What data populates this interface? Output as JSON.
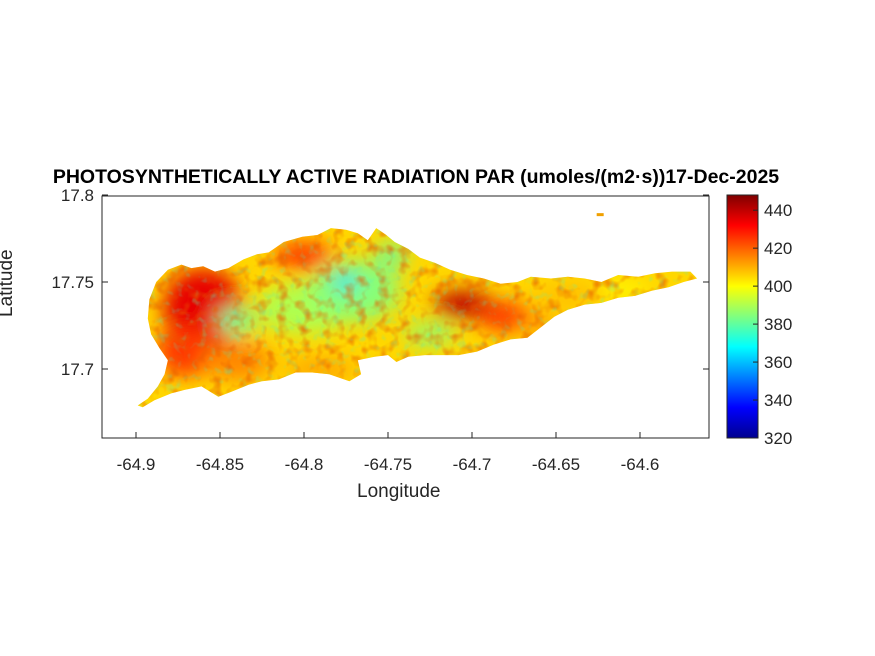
{
  "title": "PHOTOSYNTHETICALLY ACTIVE RADIATION PAR (umoles/(m2·s))17-Dec-2025",
  "xlabel": "Longitude",
  "ylabel": "Latitude",
  "x_ticks": [
    "-64.9",
    "-64.85",
    "-64.8",
    "-64.75",
    "-64.7",
    "-64.65",
    "-64.6"
  ],
  "y_ticks": [
    "17.7",
    "17.75",
    "17.8"
  ],
  "colorbar_ticks": [
    "320",
    "340",
    "360",
    "380",
    "400",
    "420",
    "440"
  ],
  "chart_data": {
    "type": "heatmap",
    "title": "PHOTOSYNTHETICALLY ACTIVE RADIATION PAR (umoles/(m2·s))17-Dec-2025",
    "xlabel": "Longitude",
    "ylabel": "Latitude",
    "xlim": [
      -64.92,
      -64.556
    ],
    "ylim": [
      17.658,
      17.8
    ],
    "colorbar": {
      "colormap": "jet",
      "range": [
        320,
        448
      ],
      "ticks": [
        320,
        340,
        360,
        380,
        400,
        420,
        440
      ]
    },
    "region_outline_lonlat": [
      [
        -64.899,
        17.679
      ],
      [
        -64.893,
        17.683
      ],
      [
        -64.887,
        17.69
      ],
      [
        -64.883,
        17.697
      ],
      [
        -64.881,
        17.705
      ],
      [
        -64.886,
        17.712
      ],
      [
        -64.891,
        17.72
      ],
      [
        -64.893,
        17.729
      ],
      [
        -64.892,
        17.74
      ],
      [
        -64.888,
        17.75
      ],
      [
        -64.881,
        17.757
      ],
      [
        -64.873,
        17.76
      ],
      [
        -64.867,
        17.758
      ],
      [
        -64.86,
        17.759
      ],
      [
        -64.853,
        17.756
      ],
      [
        -64.845,
        17.758
      ],
      [
        -64.836,
        17.763
      ],
      [
        -64.828,
        17.766
      ],
      [
        -64.821,
        17.767
      ],
      [
        -64.812,
        17.773
      ],
      [
        -64.801,
        17.776
      ],
      [
        -64.792,
        17.777
      ],
      [
        -64.784,
        17.781
      ],
      [
        -64.775,
        17.78
      ],
      [
        -64.768,
        17.778
      ],
      [
        -64.762,
        17.774
      ],
      [
        -64.757,
        17.781
      ],
      [
        -64.751,
        17.777
      ],
      [
        -64.746,
        17.773
      ],
      [
        -64.738,
        17.769
      ],
      [
        -64.731,
        17.764
      ],
      [
        -64.722,
        17.761
      ],
      [
        -64.713,
        17.757
      ],
      [
        -64.703,
        17.754
      ],
      [
        -64.693,
        17.752
      ],
      [
        -64.683,
        17.749
      ],
      [
        -64.673,
        17.75
      ],
      [
        -64.665,
        17.753
      ],
      [
        -64.653,
        17.752
      ],
      [
        -64.643,
        17.753
      ],
      [
        -64.633,
        17.752
      ],
      [
        -64.623,
        17.75
      ],
      [
        -64.613,
        17.754
      ],
      [
        -64.601,
        17.753
      ],
      [
        -64.591,
        17.755
      ],
      [
        -64.581,
        17.756
      ],
      [
        -64.57,
        17.756
      ],
      [
        -64.566,
        17.752
      ],
      [
        -64.574,
        17.75
      ],
      [
        -64.583,
        17.747
      ],
      [
        -64.593,
        17.745
      ],
      [
        -64.603,
        17.742
      ],
      [
        -64.613,
        17.741
      ],
      [
        -64.623,
        17.738
      ],
      [
        -64.633,
        17.737
      ],
      [
        -64.643,
        17.734
      ],
      [
        -64.651,
        17.73
      ],
      [
        -64.659,
        17.724
      ],
      [
        -64.667,
        17.718
      ],
      [
        -64.677,
        17.717
      ],
      [
        -64.687,
        17.714
      ],
      [
        -64.697,
        17.71
      ],
      [
        -64.708,
        17.708
      ],
      [
        -64.718,
        17.708
      ],
      [
        -64.728,
        17.708
      ],
      [
        -64.738,
        17.707
      ],
      [
        -64.745,
        17.704
      ],
      [
        -64.75,
        17.708
      ],
      [
        -64.758,
        17.707
      ],
      [
        -64.768,
        17.705
      ],
      [
        -64.766,
        17.697
      ],
      [
        -64.773,
        17.693
      ],
      [
        -64.785,
        17.697
      ],
      [
        -64.795,
        17.698
      ],
      [
        -64.805,
        17.698
      ],
      [
        -64.815,
        17.694
      ],
      [
        -64.825,
        17.693
      ],
      [
        -64.833,
        17.691
      ],
      [
        -64.843,
        17.687
      ],
      [
        -64.851,
        17.684
      ],
      [
        -64.861,
        17.69
      ],
      [
        -64.871,
        17.688
      ],
      [
        -64.879,
        17.686
      ],
      [
        -64.889,
        17.682
      ],
      [
        -64.896,
        17.678
      ]
    ],
    "dominant_values": [
      {
        "area": "west end, around -64.86 / 17.735",
        "value": 435
      },
      {
        "area": "central upland, around -64.77 / 17.745",
        "value": 385
      },
      {
        "area": "pocket near -64.775 / 17.75",
        "value": 360
      },
      {
        "area": "hotspot near -64.705 / 17.737",
        "value": 440
      },
      {
        "area": "east end, around -64.62 / 17.745",
        "value": 405
      },
      {
        "area": "south coast",
        "value": 405
      }
    ],
    "islet": {
      "lon": -64.624,
      "lat": 17.789
    }
  }
}
